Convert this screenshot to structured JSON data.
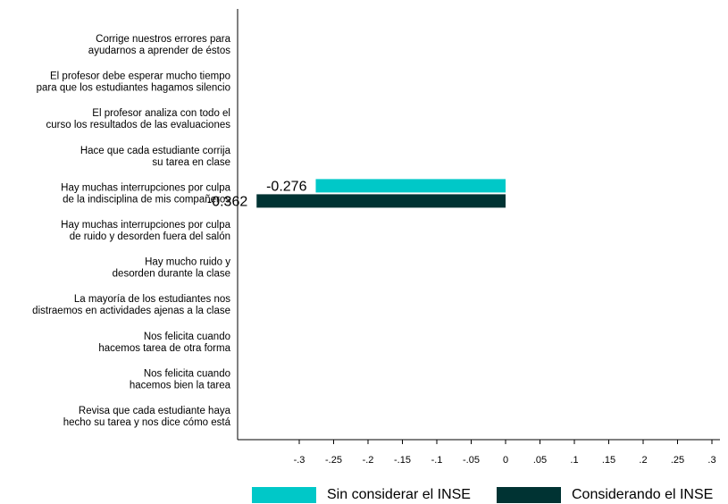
{
  "chart_data": {
    "type": "bar",
    "orientation": "horizontal",
    "categories": [
      [
        "Corrige nuestros errores para",
        "ayudarnos a aprender de éstos"
      ],
      [
        "El profesor debe esperar mucho tiempo",
        "para que los estudiantes hagamos silencio"
      ],
      [
        "El profesor analiza con todo el",
        "curso los resultados de las evaluaciones"
      ],
      [
        "Hace que cada estudiante corrija",
        "su tarea en clase"
      ],
      [
        "Hay muchas interrupciones por culpa",
        "de la indisciplina de mis compañeros"
      ],
      [
        "Hay muchas interrupciones por culpa",
        "de ruido y desorden fuera del salón"
      ],
      [
        "Hay mucho ruido y",
        "desorden durante la clase"
      ],
      [
        "La mayoría de los estudiantes nos",
        "distraemos en actividades ajenas a la clase"
      ],
      [
        "Nos felicita cuando",
        "hacemos tarea de otra forma"
      ],
      [
        "Nos felicita cuando",
        "hacemos bien la tarea"
      ],
      [
        "Revisa que cada estudiante haya",
        "hecho su tarea y nos dice cómo está"
      ]
    ],
    "series": [
      {
        "name": "Sin considerar el INSE",
        "color": "#00c8c8",
        "values": [
          null,
          null,
          null,
          null,
          -0.276,
          null,
          null,
          null,
          null,
          null,
          null
        ],
        "labels": [
          "",
          "",
          "",
          "",
          "-0.276",
          "",
          "",
          "",
          "",
          "",
          ""
        ]
      },
      {
        "name": "Considerando el INSE",
        "color": "#003333",
        "values": [
          null,
          null,
          null,
          null,
          -0.362,
          null,
          null,
          null,
          null,
          null,
          null
        ],
        "labels": [
          "",
          "",
          "",
          "",
          "-0.362",
          "",
          "",
          "",
          "",
          "",
          ""
        ]
      }
    ],
    "xlim": [
      -0.362,
      0.3
    ],
    "xticks": [
      -0.3,
      -0.25,
      -0.2,
      -0.15,
      -0.1,
      -0.05,
      0,
      0.05,
      0.1,
      0.15,
      0.2,
      0.25,
      0.3
    ],
    "xtick_labels": [
      "-.3",
      "-.25",
      "-.2",
      "-.15",
      "-.1",
      "-.05",
      "0",
      ".05",
      ".1",
      ".15",
      ".2",
      ".25",
      ".3"
    ],
    "grid": false,
    "legend_position": "bottom"
  }
}
